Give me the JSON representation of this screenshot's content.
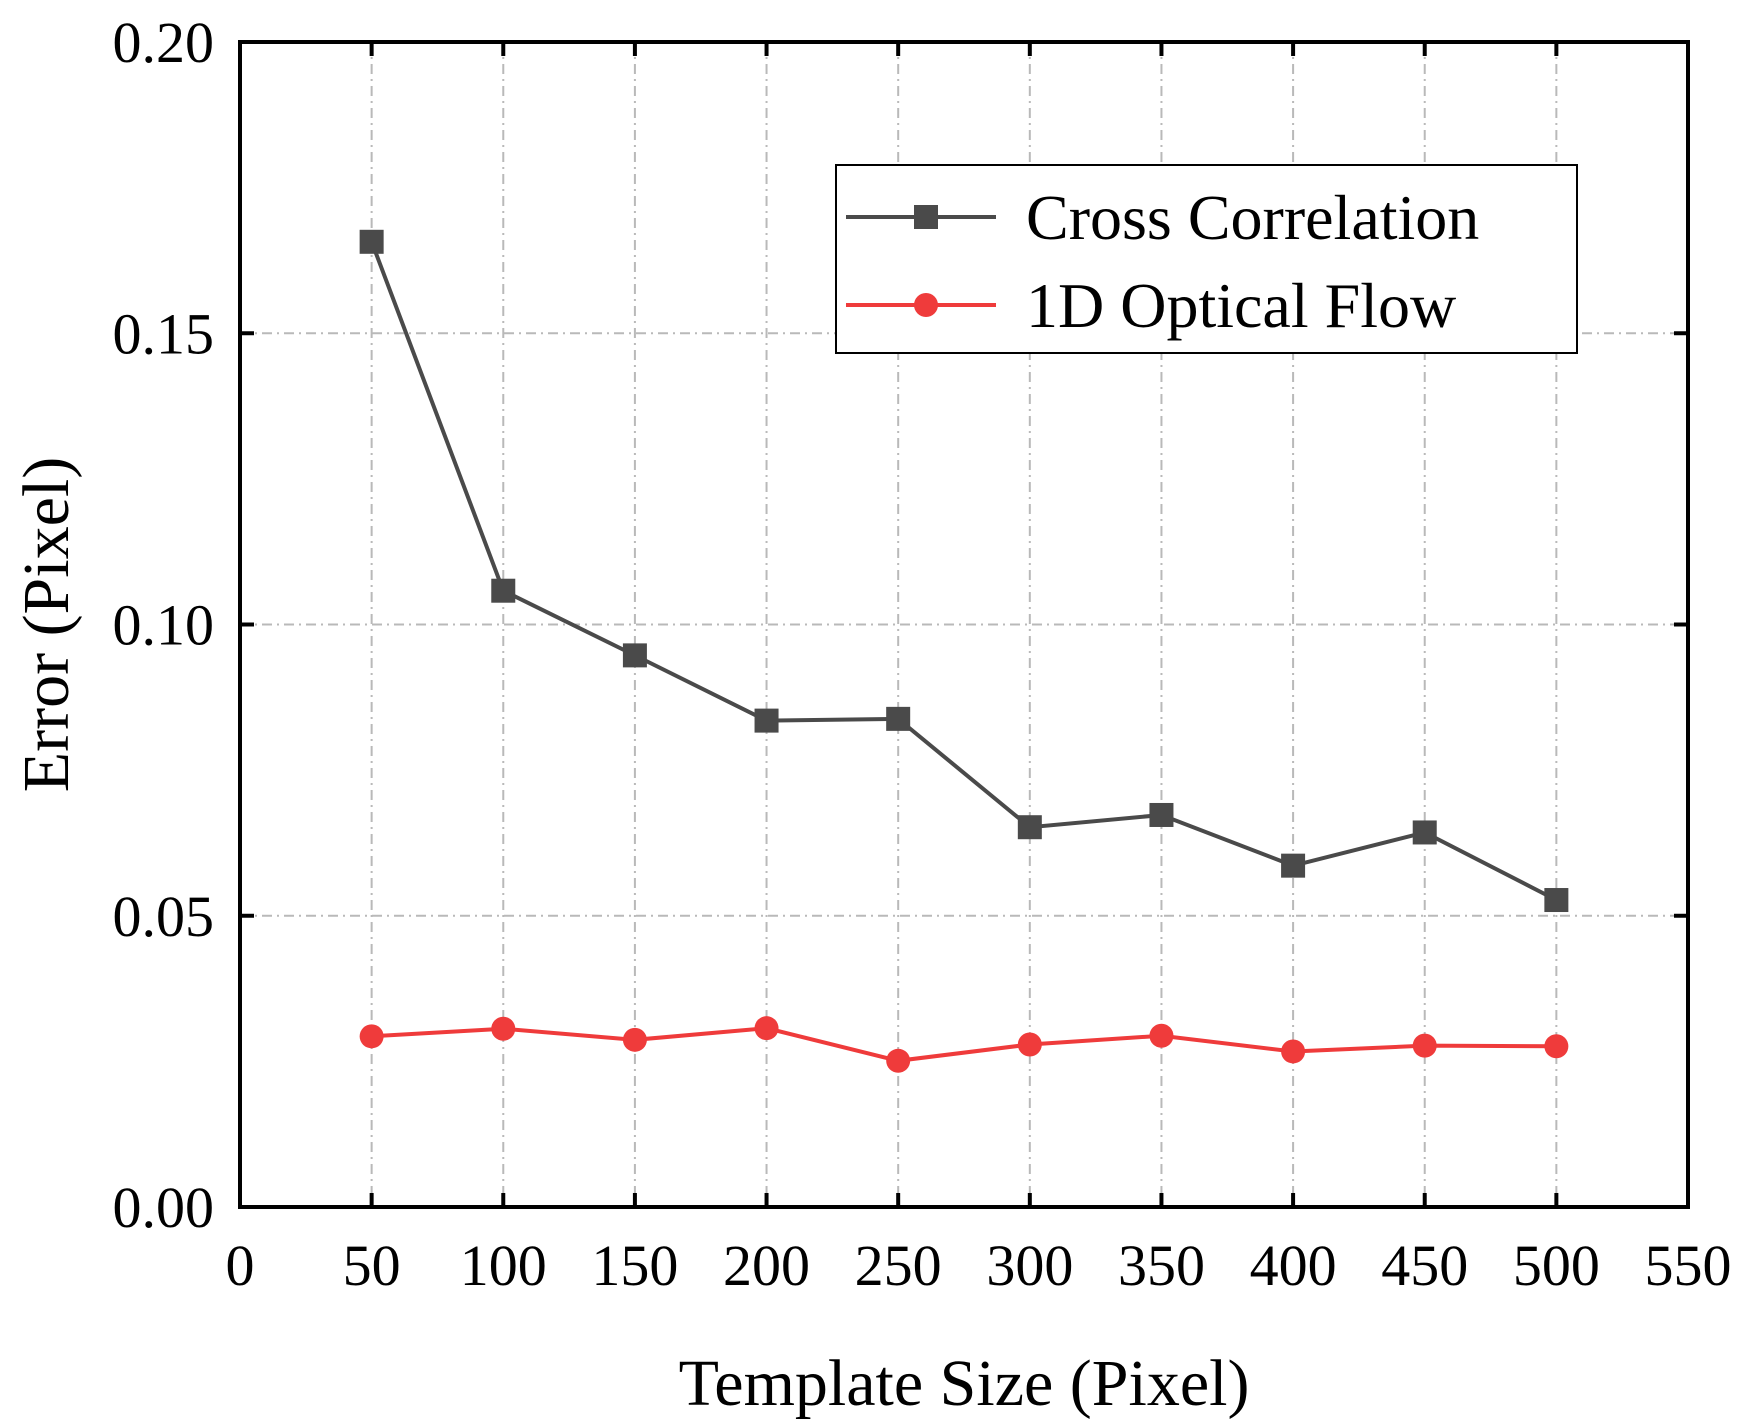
{
  "chart_data": {
    "type": "line",
    "title": "",
    "xlabel": "Template Size (Pixel)",
    "ylabel": "Error (Pixel)",
    "xlim": [
      0,
      550
    ],
    "ylim": [
      0,
      0.2
    ],
    "x_ticks": [
      0,
      50,
      100,
      150,
      200,
      250,
      300,
      350,
      400,
      450,
      500,
      550
    ],
    "x_tick_labels": [
      "0",
      "50",
      "100",
      "150",
      "200",
      "250",
      "300",
      "350",
      "400",
      "450",
      "500",
      "550"
    ],
    "y_ticks": [
      0,
      0.05,
      0.1,
      0.15,
      0.2
    ],
    "y_tick_labels": [
      "0.00",
      "0.05",
      "0.10",
      "0.15",
      "0.20"
    ],
    "grid": true,
    "legend_position": "top-right",
    "x": [
      50,
      100,
      150,
      200,
      250,
      300,
      350,
      400,
      450,
      500
    ],
    "series": [
      {
        "name": "Cross Correlation",
        "color": "#4a4a4a",
        "marker": "square",
        "values": [
          0.1657,
          0.1058,
          0.0947,
          0.0835,
          0.0838,
          0.0652,
          0.0673,
          0.0586,
          0.0643,
          0.0527
        ]
      },
      {
        "name": "1D Optical Flow",
        "color": "#ef3b3b",
        "marker": "circle",
        "values": [
          0.0293,
          0.0306,
          0.0287,
          0.0307,
          0.0251,
          0.0279,
          0.0294,
          0.0267,
          0.0277,
          0.0276
        ]
      }
    ]
  }
}
